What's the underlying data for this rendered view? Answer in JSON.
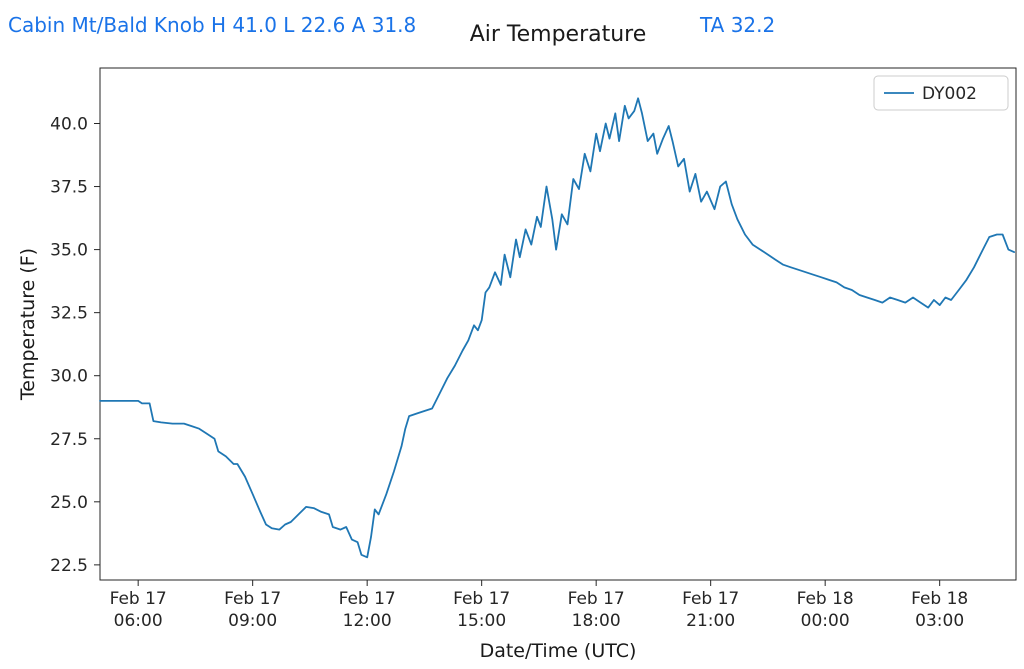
{
  "header": {
    "station_summary": "Cabin Mt/Bald Knob H 41.0 L 22.6 A 31.8",
    "ta_reading": "TA 32.2"
  },
  "chart_data": {
    "type": "line",
    "title": "Air Temperature",
    "xlabel": "Date/Time (UTC)",
    "ylabel": "Temperature (F)",
    "grid": false,
    "legend_position": "upper right",
    "x_encoding": "hours since Feb 17 05:00 UTC",
    "xlim": [
      0,
      24
    ],
    "ylim": [
      21.9,
      42.2
    ],
    "yticks": {
      "values": [
        22.5,
        25.0,
        27.5,
        30.0,
        32.5,
        35.0,
        37.5,
        40.0
      ],
      "labels": [
        "22.5",
        "25.0",
        "27.5",
        "30.0",
        "32.5",
        "35.0",
        "37.5",
        "40.0"
      ]
    },
    "xticks": {
      "values": [
        1,
        4,
        7,
        10,
        13,
        16,
        19,
        22
      ],
      "labels": [
        [
          "Feb 17",
          "06:00"
        ],
        [
          "Feb 17",
          "09:00"
        ],
        [
          "Feb 17",
          "12:00"
        ],
        [
          "Feb 17",
          "15:00"
        ],
        [
          "Feb 17",
          "18:00"
        ],
        [
          "Feb 17",
          "21:00"
        ],
        [
          "Feb 18",
          "00:00"
        ],
        [
          "Feb 18",
          "03:00"
        ]
      ]
    },
    "series": [
      {
        "name": "DY002",
        "color": "#1f77b4",
        "x": [
          0.0,
          0.3,
          0.6,
          0.9,
          1.0,
          1.1,
          1.3,
          1.4,
          1.6,
          1.9,
          2.2,
          2.4,
          2.6,
          2.8,
          3.0,
          3.1,
          3.3,
          3.5,
          3.6,
          3.8,
          4.0,
          4.2,
          4.35,
          4.5,
          4.7,
          4.85,
          5.0,
          5.2,
          5.4,
          5.6,
          5.8,
          6.0,
          6.1,
          6.3,
          6.45,
          6.6,
          6.75,
          6.85,
          7.0,
          7.1,
          7.2,
          7.3,
          7.5,
          7.7,
          7.9,
          8.0,
          8.1,
          8.3,
          8.5,
          8.7,
          8.9,
          9.1,
          9.3,
          9.5,
          9.65,
          9.8,
          9.9,
          10.0,
          10.1,
          10.2,
          10.35,
          10.5,
          10.6,
          10.75,
          10.9,
          11.0,
          11.15,
          11.3,
          11.45,
          11.55,
          11.7,
          11.85,
          11.95,
          12.1,
          12.25,
          12.4,
          12.55,
          12.7,
          12.85,
          13.0,
          13.1,
          13.25,
          13.35,
          13.5,
          13.6,
          13.75,
          13.85,
          14.0,
          14.1,
          14.2,
          14.35,
          14.5,
          14.6,
          14.75,
          14.9,
          15.0,
          15.15,
          15.3,
          15.45,
          15.6,
          15.75,
          15.9,
          16.1,
          16.25,
          16.4,
          16.55,
          16.7,
          16.9,
          17.1,
          17.3,
          17.5,
          17.7,
          17.9,
          18.1,
          18.3,
          18.5,
          18.7,
          18.9,
          19.1,
          19.3,
          19.5,
          19.7,
          19.9,
          20.1,
          20.3,
          20.5,
          20.7,
          20.9,
          21.1,
          21.3,
          21.5,
          21.7,
          21.85,
          22.0,
          22.15,
          22.3,
          22.5,
          22.7,
          22.9,
          23.1,
          23.3,
          23.5,
          23.65,
          23.8,
          23.95
        ],
        "y": [
          29.0,
          29.0,
          29.0,
          29.0,
          29.0,
          28.9,
          28.9,
          28.2,
          28.15,
          28.1,
          28.1,
          28.0,
          27.9,
          27.7,
          27.5,
          27.0,
          26.8,
          26.5,
          26.5,
          26.0,
          25.3,
          24.6,
          24.1,
          23.95,
          23.9,
          24.1,
          24.2,
          24.5,
          24.8,
          24.75,
          24.6,
          24.5,
          24.0,
          23.9,
          24.0,
          23.5,
          23.4,
          22.9,
          22.8,
          23.6,
          24.7,
          24.5,
          25.3,
          26.2,
          27.2,
          27.9,
          28.4,
          28.5,
          28.6,
          28.7,
          29.3,
          29.9,
          30.4,
          31.0,
          31.4,
          32.0,
          31.8,
          32.2,
          33.3,
          33.5,
          34.1,
          33.6,
          34.8,
          33.9,
          35.4,
          34.7,
          35.8,
          35.2,
          36.3,
          35.9,
          37.5,
          36.2,
          35.0,
          36.4,
          36.0,
          37.8,
          37.4,
          38.8,
          38.1,
          39.6,
          38.9,
          40.0,
          39.4,
          40.4,
          39.3,
          40.7,
          40.2,
          40.5,
          41.0,
          40.4,
          39.3,
          39.6,
          38.8,
          39.4,
          39.9,
          39.3,
          38.3,
          38.6,
          37.3,
          38.0,
          36.9,
          37.3,
          36.6,
          37.5,
          37.7,
          36.8,
          36.2,
          35.6,
          35.2,
          35.0,
          34.8,
          34.6,
          34.4,
          34.3,
          34.2,
          34.1,
          34.0,
          33.9,
          33.8,
          33.7,
          33.5,
          33.4,
          33.2,
          33.1,
          33.0,
          32.9,
          33.1,
          33.0,
          32.9,
          33.1,
          32.9,
          32.7,
          33.0,
          32.8,
          33.1,
          33.0,
          33.4,
          33.8,
          34.3,
          34.9,
          35.5,
          35.6,
          35.6,
          35.0,
          34.9
        ]
      }
    ]
  }
}
